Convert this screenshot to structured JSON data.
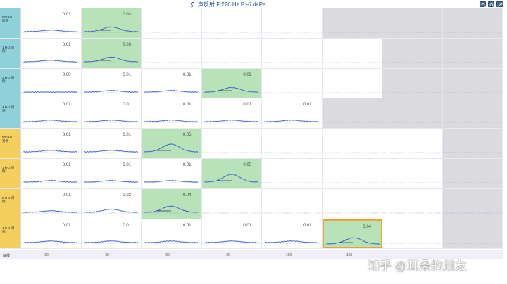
{
  "title": "声反射  F:226 Hz P:-6 daPa",
  "watermark": "知乎 @耳朵的朋友",
  "footer_label": "曲线",
  "footer_ticks": [
    "90",
    "95",
    "90",
    "95",
    "100",
    "105"
  ],
  "colors": {
    "right_ear": "#8fd0d9",
    "left_ear": "#f4cf5e",
    "trace": "#3a5bd0",
    "green_cell": "#b8e2b8",
    "gray_cell": "#dadadf",
    "selected": "#f0a030"
  },
  "rows": [
    {
      "label": "500 Hz\n同侧",
      "side": "r",
      "cells": [
        {
          "v": "0.01",
          "s": ""
        },
        {
          "v": "0.03",
          "s": "green"
        },
        {
          "v": "",
          "s": ""
        },
        {
          "v": "",
          "s": ""
        },
        {
          "v": "",
          "s": ""
        },
        {
          "v": "",
          "s": "gray"
        },
        {
          "v": "",
          "s": "gray"
        },
        {
          "v": "",
          "s": "gray"
        }
      ]
    },
    {
      "label": "1 kHz 同\n侧",
      "side": "r",
      "cells": [
        {
          "v": "0.01",
          "s": ""
        },
        {
          "v": "0.03",
          "s": "green"
        },
        {
          "v": "",
          "s": ""
        },
        {
          "v": "",
          "s": ""
        },
        {
          "v": "",
          "s": ""
        },
        {
          "v": "",
          "s": ""
        },
        {
          "v": "",
          "s": "gray"
        },
        {
          "v": "",
          "s": "gray"
        }
      ]
    },
    {
      "label": "2 kHz 同\n侧",
      "side": "r",
      "cells": [
        {
          "v": "0.00",
          "s": ""
        },
        {
          "v": "0.01",
          "s": ""
        },
        {
          "v": "0.01",
          "s": ""
        },
        {
          "v": "0.03",
          "s": "green"
        },
        {
          "v": "",
          "s": ""
        },
        {
          "v": "",
          "s": ""
        },
        {
          "v": "",
          "s": "gray"
        },
        {
          "v": "",
          "s": "gray"
        }
      ]
    },
    {
      "label": "4 kHz 同\n侧",
      "side": "r",
      "cells": [
        {
          "v": "0.01",
          "s": ""
        },
        {
          "v": "0.01",
          "s": ""
        },
        {
          "v": "0.01",
          "s": ""
        },
        {
          "v": "0.01",
          "s": ""
        },
        {
          "v": "0.01",
          "s": ""
        },
        {
          "v": "",
          "s": "gray"
        },
        {
          "v": "",
          "s": "gray"
        },
        {
          "v": "",
          "s": "gray"
        }
      ]
    },
    {
      "label": "500 Hz\n对侧",
      "side": "l",
      "cells": [
        {
          "v": "0.01",
          "s": ""
        },
        {
          "v": "0.01",
          "s": ""
        },
        {
          "v": "0.05",
          "s": "green"
        },
        {
          "v": "",
          "s": ""
        },
        {
          "v": "",
          "s": ""
        },
        {
          "v": "",
          "s": ""
        },
        {
          "v": "",
          "s": ""
        },
        {
          "v": "",
          "s": "gray"
        }
      ]
    },
    {
      "label": "1 kHz 对\n侧",
      "side": "l",
      "cells": [
        {
          "v": "0.01",
          "s": ""
        },
        {
          "v": "0.01",
          "s": ""
        },
        {
          "v": "0.01",
          "s": ""
        },
        {
          "v": "0.05",
          "s": "green"
        },
        {
          "v": "",
          "s": ""
        },
        {
          "v": "",
          "s": ""
        },
        {
          "v": "",
          "s": ""
        },
        {
          "v": "",
          "s": "gray"
        }
      ]
    },
    {
      "label": "2 kHz 对\n侧",
      "side": "l",
      "cells": [
        {
          "v": "0.01",
          "s": ""
        },
        {
          "v": "0.02",
          "s": ""
        },
        {
          "v": "0.04",
          "s": "green"
        },
        {
          "v": "",
          "s": ""
        },
        {
          "v": "",
          "s": ""
        },
        {
          "v": "",
          "s": ""
        },
        {
          "v": "",
          "s": ""
        },
        {
          "v": "",
          "s": "gray"
        }
      ]
    },
    {
      "label": "4 kHz 对\n侧",
      "side": "l",
      "cells": [
        {
          "v": "0.01",
          "s": ""
        },
        {
          "v": "0.01",
          "s": ""
        },
        {
          "v": "0.01",
          "s": ""
        },
        {
          "v": "0.01",
          "s": ""
        },
        {
          "v": "0.01",
          "s": ""
        },
        {
          "v": "0.04",
          "s": "green selected"
        },
        {
          "v": "",
          "s": ""
        },
        {
          "v": "",
          "s": "gray"
        }
      ]
    }
  ]
}
